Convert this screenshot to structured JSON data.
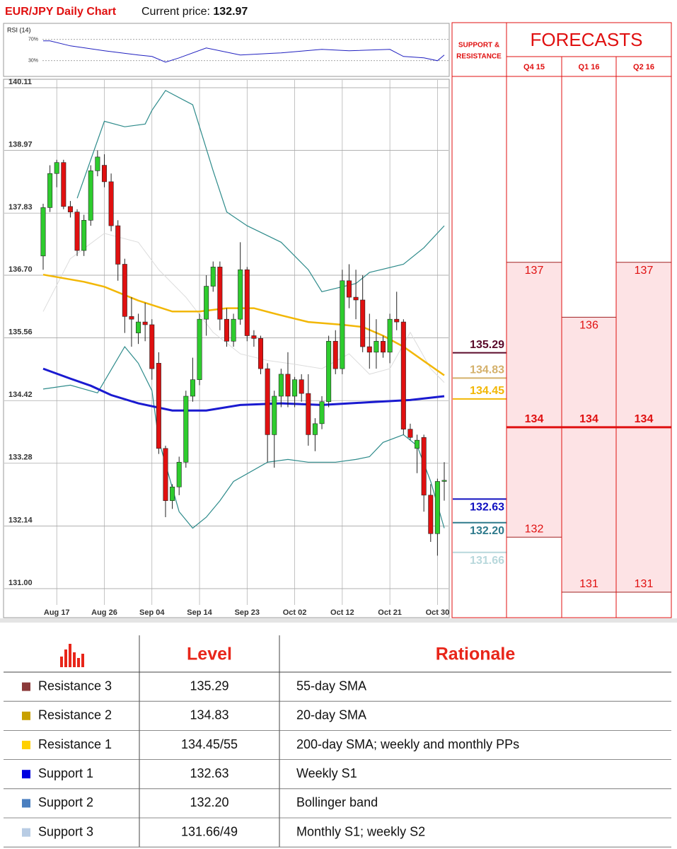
{
  "chart_data": {
    "type": "candlestick",
    "title": "EUR/JPY Daily Chart",
    "price_label": "Current price:",
    "current_price": 132.97,
    "categories": [
      null,
      null,
      "Aug 17",
      null,
      null,
      null,
      null,
      null,
      null,
      "Aug 26",
      null,
      null,
      null,
      null,
      null,
      null,
      "Sep 04",
      null,
      null,
      null,
      null,
      null,
      null,
      "Sep 14",
      null,
      null,
      null,
      null,
      null,
      null,
      "Sep 23",
      null,
      null,
      null,
      null,
      null,
      null,
      "Oct 02",
      null,
      null,
      null,
      null,
      null,
      null,
      "Oct 12",
      null,
      null,
      null,
      null,
      null,
      null,
      "Oct 21",
      null,
      null,
      null,
      null,
      null,
      null,
      "Oct 30",
      null
    ],
    "candles": [
      {
        "open": 137.05,
        "high": 138.0,
        "low": 136.8,
        "close": 137.93
      },
      {
        "open": 137.93,
        "high": 138.7,
        "low": 137.85,
        "close": 138.55
      },
      {
        "open": 138.55,
        "high": 138.8,
        "low": 138.3,
        "close": 138.75
      },
      {
        "open": 138.75,
        "high": 138.8,
        "low": 137.9,
        "close": 137.95
      },
      {
        "open": 137.95,
        "high": 138.05,
        "low": 137.75,
        "close": 137.85
      },
      {
        "open": 137.85,
        "high": 137.9,
        "low": 137.05,
        "close": 137.15
      },
      {
        "open": 137.15,
        "high": 137.8,
        "low": 137.05,
        "close": 137.7
      },
      {
        "open": 137.7,
        "high": 138.7,
        "low": 137.6,
        "close": 138.6
      },
      {
        "open": 138.6,
        "high": 138.97,
        "low": 138.5,
        "close": 138.85
      },
      {
        "open": 138.7,
        "high": 138.9,
        "low": 138.3,
        "close": 138.4
      },
      {
        "open": 138.4,
        "high": 138.55,
        "low": 137.5,
        "close": 137.6
      },
      {
        "open": 137.6,
        "high": 137.7,
        "low": 136.6,
        "close": 136.9
      },
      {
        "open": 136.9,
        "high": 137.0,
        "low": 135.65,
        "close": 135.95
      },
      {
        "open": 135.95,
        "high": 136.3,
        "low": 135.4,
        "close": 135.9
      },
      {
        "open": 135.65,
        "high": 136.0,
        "low": 135.45,
        "close": 135.85
      },
      {
        "open": 135.85,
        "high": 136.2,
        "low": 135.5,
        "close": 135.8
      },
      {
        "open": 135.8,
        "high": 135.9,
        "low": 134.8,
        "close": 135.0
      },
      {
        "open": 135.1,
        "high": 135.3,
        "low": 133.45,
        "close": 133.55
      },
      {
        "open": 133.55,
        "high": 133.6,
        "low": 132.3,
        "close": 132.6
      },
      {
        "open": 132.6,
        "high": 132.9,
        "low": 132.45,
        "close": 132.85
      },
      {
        "open": 132.85,
        "high": 133.4,
        "low": 132.7,
        "close": 133.3
      },
      {
        "open": 133.3,
        "high": 134.6,
        "low": 133.2,
        "close": 134.5
      },
      {
        "open": 134.5,
        "high": 135.2,
        "low": 134.4,
        "close": 134.8
      },
      {
        "open": 134.8,
        "high": 136.0,
        "low": 134.7,
        "close": 135.9
      },
      {
        "open": 135.9,
        "high": 136.7,
        "low": 135.6,
        "close": 136.5
      },
      {
        "open": 136.5,
        "high": 136.95,
        "low": 136.4,
        "close": 136.85
      },
      {
        "open": 136.85,
        "high": 136.95,
        "low": 135.7,
        "close": 135.9
      },
      {
        "open": 135.9,
        "high": 136.1,
        "low": 135.4,
        "close": 135.5
      },
      {
        "open": 135.5,
        "high": 136.0,
        "low": 135.4,
        "close": 135.9
      },
      {
        "open": 135.9,
        "high": 137.3,
        "low": 135.8,
        "close": 136.8
      },
      {
        "open": 136.8,
        "high": 136.85,
        "low": 135.5,
        "close": 135.6
      },
      {
        "open": 135.6,
        "high": 135.7,
        "low": 135.4,
        "close": 135.55
      },
      {
        "open": 135.55,
        "high": 135.6,
        "low": 134.9,
        "close": 135.0
      },
      {
        "open": 135.0,
        "high": 135.1,
        "low": 133.3,
        "close": 133.8
      },
      {
        "open": 133.8,
        "high": 134.6,
        "low": 133.2,
        "close": 134.5
      },
      {
        "open": 134.5,
        "high": 135.0,
        "low": 134.3,
        "close": 134.9
      },
      {
        "open": 134.9,
        "high": 135.3,
        "low": 134.3,
        "close": 134.5
      },
      {
        "open": 134.5,
        "high": 134.85,
        "low": 134.3,
        "close": 134.8
      },
      {
        "open": 134.8,
        "high": 134.9,
        "low": 134.4,
        "close": 134.55
      },
      {
        "open": 134.55,
        "high": 134.9,
        "low": 133.6,
        "close": 133.8
      },
      {
        "open": 133.8,
        "high": 134.1,
        "low": 133.5,
        "close": 134.0
      },
      {
        "open": 134.0,
        "high": 134.5,
        "low": 133.9,
        "close": 134.4
      },
      {
        "open": 134.4,
        "high": 135.6,
        "low": 134.3,
        "close": 135.5
      },
      {
        "open": 135.5,
        "high": 135.7,
        "low": 134.9,
        "close": 135.0
      },
      {
        "open": 135.0,
        "high": 136.8,
        "low": 134.9,
        "close": 136.6
      },
      {
        "open": 136.6,
        "high": 136.9,
        "low": 136.1,
        "close": 136.3
      },
      {
        "open": 136.3,
        "high": 136.8,
        "low": 135.9,
        "close": 136.25
      },
      {
        "open": 136.25,
        "high": 136.7,
        "low": 135.3,
        "close": 135.4
      },
      {
        "open": 135.4,
        "high": 136.0,
        "low": 135.0,
        "close": 135.3
      },
      {
        "open": 135.3,
        "high": 135.9,
        "low": 135.0,
        "close": 135.5
      },
      {
        "open": 135.5,
        "high": 135.6,
        "low": 135.2,
        "close": 135.3
      },
      {
        "open": 135.3,
        "high": 136.0,
        "low": 135.1,
        "close": 135.9
      },
      {
        "open": 135.9,
        "high": 136.4,
        "low": 135.7,
        "close": 135.85
      },
      {
        "open": 135.85,
        "high": 135.9,
        "low": 133.8,
        "close": 133.9
      },
      {
        "open": 133.9,
        "high": 134.0,
        "low": 133.7,
        "close": 133.75
      },
      {
        "open": 133.55,
        "high": 133.8,
        "low": 133.1,
        "close": 133.7
      },
      {
        "open": 133.75,
        "high": 133.8,
        "low": 132.4,
        "close": 132.7
      },
      {
        "open": 132.7,
        "high": 132.9,
        "low": 131.85,
        "close": 132.0
      },
      {
        "open": 132.0,
        "high": 133.0,
        "low": 131.6,
        "close": 132.95
      },
      {
        "open": 132.95,
        "high": 133.3,
        "low": 132.6,
        "close": 132.97
      }
    ],
    "ylim": [
      131.0,
      140.11
    ],
    "yticks": [
      {
        "value": 131.0,
        "label": "131.00"
      },
      132.14,
      133.28,
      134.42,
      135.56,
      {
        "value": 136.7,
        "label": "136.70"
      },
      137.83,
      138.97,
      140.11
    ],
    "grid": true,
    "up_color": "#2ecc2e",
    "down_color": "#e01010",
    "overlays": [
      {
        "color": "#2e8b8b",
        "width": 1.2,
        "x": [
          5,
          9,
          12,
          15,
          16,
          18,
          22,
          25,
          27,
          30,
          35,
          39,
          41,
          46,
          48,
          53,
          56,
          59
        ],
        "values": [
          138.1,
          139.5,
          139.4,
          139.45,
          139.7,
          140.06,
          139.8,
          138.6,
          137.85,
          137.6,
          137.3,
          136.8,
          136.4,
          136.55,
          136.75,
          136.9,
          137.2,
          137.6
        ]
      },
      {
        "color": "#2e8b8b",
        "width": 1.2,
        "x": [
          0,
          4,
          8,
          12,
          14,
          16,
          17,
          20,
          22,
          24,
          26,
          28,
          33,
          36,
          39,
          43,
          46,
          48,
          50,
          53,
          55,
          57,
          59
        ],
        "values": [
          134.63,
          134.7,
          134.56,
          135.4,
          135.1,
          134.6,
          133.7,
          132.4,
          132.1,
          132.3,
          132.6,
          132.95,
          133.3,
          133.35,
          133.3,
          133.3,
          133.35,
          133.4,
          133.66,
          133.8,
          133.6,
          132.95,
          132.1
        ]
      },
      {
        "color": "#dcdcdc",
        "width": 1,
        "x": [
          0,
          4,
          9,
          14,
          17,
          21,
          25,
          29,
          33,
          37,
          41,
          45,
          48,
          51,
          54,
          57,
          59
        ],
        "values": [
          136.04,
          137.0,
          137.46,
          137.3,
          136.8,
          136.3,
          135.66,
          135.27,
          135.15,
          135.08,
          135.0,
          135.27,
          134.9,
          135.0,
          135.66,
          135.0,
          134.75
        ]
      },
      {
        "color": "#f2b705",
        "width": 2.5,
        "x": [
          0,
          6,
          9,
          14,
          19,
          23,
          27,
          31,
          35,
          39,
          44,
          47,
          50,
          53,
          56,
          59
        ],
        "values": [
          136.71,
          136.58,
          136.49,
          136.24,
          136.04,
          136.04,
          136.1,
          136.1,
          135.97,
          135.85,
          135.8,
          135.76,
          135.6,
          135.4,
          135.14,
          134.88
        ]
      },
      {
        "color": "#1a1ad0",
        "width": 3,
        "x": [
          0,
          4,
          7,
          10,
          14,
          19,
          24,
          29,
          35,
          41,
          48,
          54,
          59
        ],
        "values": [
          135.0,
          134.82,
          134.69,
          134.52,
          134.37,
          134.24,
          134.24,
          134.34,
          134.37,
          134.34,
          134.39,
          134.43,
          134.5
        ]
      }
    ],
    "rsi": {
      "title": "RSI (14)",
      "color": "#2020c0",
      "ylim": [
        3,
        91
      ],
      "yticks": [
        {
          "value": 70,
          "label": "70%"
        },
        {
          "value": 30,
          "label": "30%"
        }
      ],
      "x": [
        0,
        1,
        4,
        9,
        14,
        16,
        18,
        20,
        24,
        29,
        35,
        41,
        45,
        51,
        53,
        56,
        58,
        59
      ],
      "values": [
        67.3,
        67.3,
        58,
        48.7,
        40.7,
        38,
        27.3,
        35.3,
        54,
        40.7,
        44.7,
        51.3,
        48.7,
        51.3,
        38,
        35.3,
        30,
        40.7
      ]
    },
    "levels_title": [
      "SUPPORT &",
      "RESISTANCE"
    ],
    "levels": [
      {
        "value": 135.29,
        "label": "135.29",
        "color": "#5a0a2a"
      },
      {
        "value": 134.83,
        "label": "134.83",
        "color": "#d4b06a"
      },
      {
        "value": 134.45,
        "label": "134.45",
        "color": "#f2b705"
      },
      {
        "value": 132.63,
        "label": "132.63",
        "color": "#1010c0"
      },
      {
        "value": 132.2,
        "label": "132.20",
        "color": "#2e7a8c"
      },
      {
        "value": 131.66,
        "label": "131.66",
        "color": "#b8d8dc"
      }
    ]
  },
  "forecasts": {
    "title": "FORECASTS",
    "columns": [
      {
        "period": "Q4 15",
        "high": 137,
        "mid": 134,
        "low": 132
      },
      {
        "period": "Q1 16",
        "high": 136,
        "mid": 134,
        "low": 131
      },
      {
        "period": "Q2 16",
        "high": 137,
        "mid": 134,
        "low": 131
      }
    ]
  },
  "table": {
    "headers": [
      "Level",
      "Rationale"
    ],
    "rows": [
      {
        "color": "#8b3a3a",
        "name": "Resistance 3",
        "level": "135.29",
        "rationale": "55-day SMA"
      },
      {
        "color": "#c8a000",
        "name": "Resistance 2",
        "level": "134.83",
        "rationale": "20-day SMA"
      },
      {
        "color": "#ffd000",
        "name": "Resistance 1",
        "level": "134.45/55",
        "rationale": "200-day SMA; weekly and monthly PPs"
      },
      {
        "color": "#0000e0",
        "name": "Support 1",
        "level": "132.63",
        "rationale": "Weekly S1"
      },
      {
        "color": "#4a7fc0",
        "name": "Support 2",
        "level": "132.20",
        "rationale": "Bollinger band"
      },
      {
        "color": "#b8cce4",
        "name": "Support 3",
        "level": "131.66/49",
        "rationale": "Monthly S1; weekly S2"
      }
    ]
  }
}
